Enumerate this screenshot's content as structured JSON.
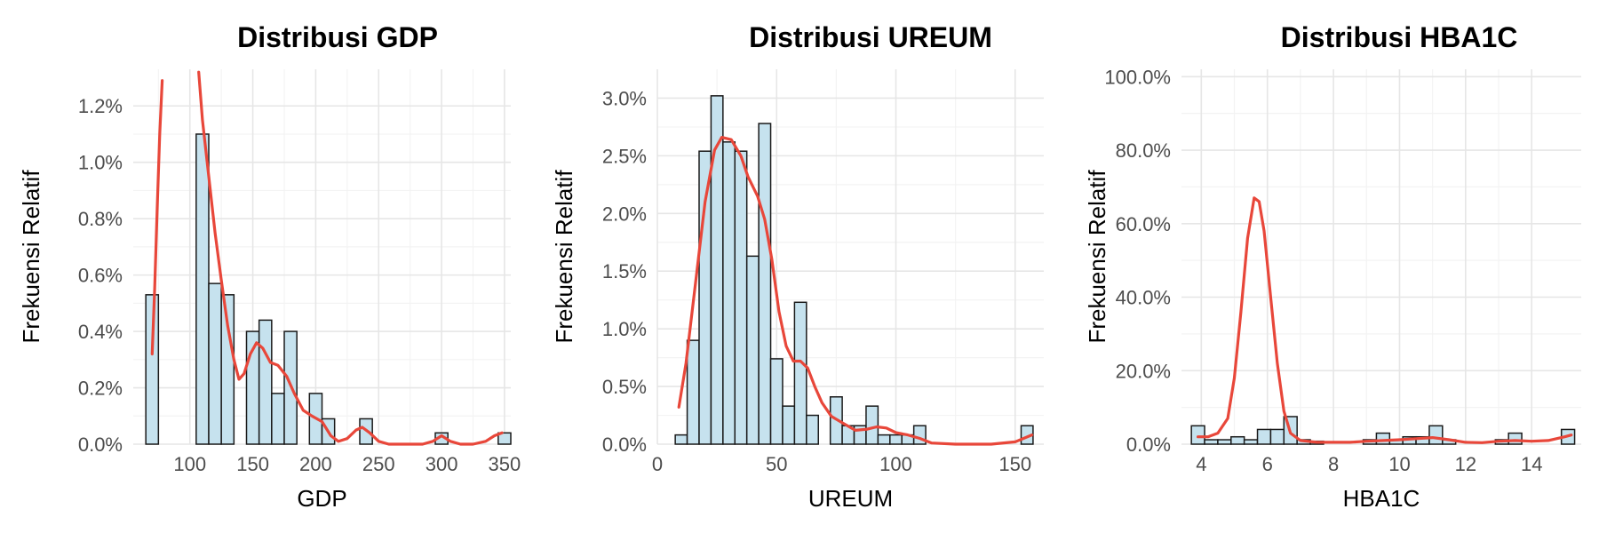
{
  "chart_data": [
    {
      "type": "bar",
      "title": "Distribusi GDP",
      "xlabel": "GDP",
      "ylabel": "Frekuensi Relatif",
      "xlim": [
        55,
        355
      ],
      "ylim": [
        0,
        0.0133
      ],
      "x_ticks": [
        100,
        150,
        200,
        250,
        300,
        350
      ],
      "x_tick_labels": [
        "100",
        "150",
        "200",
        "250",
        "300",
        "350"
      ],
      "y_ticks": [
        0,
        0.002,
        0.004,
        0.006,
        0.008,
        0.01,
        0.012
      ],
      "y_tick_labels": [
        "0.0%",
        "0.2%",
        "0.4%",
        "0.6%",
        "0.8%",
        "1.0%",
        "1.2%"
      ],
      "bin_width": 10,
      "bins": [
        {
          "x": 70,
          "y": 0.0053
        },
        {
          "x": 110,
          "y": 0.011
        },
        {
          "x": 120,
          "y": 0.0057
        },
        {
          "x": 130,
          "y": 0.0053
        },
        {
          "x": 150,
          "y": 0.004
        },
        {
          "x": 160,
          "y": 0.0044
        },
        {
          "x": 170,
          "y": 0.0018
        },
        {
          "x": 180,
          "y": 0.004
        },
        {
          "x": 200,
          "y": 0.0018
        },
        {
          "x": 210,
          "y": 0.0009
        },
        {
          "x": 240,
          "y": 0.0009
        },
        {
          "x": 300,
          "y": 0.0004
        },
        {
          "x": 350,
          "y": 0.0004
        }
      ],
      "density_segments": [
        [
          [
            70,
            0.0032
          ],
          [
            72,
            0.0055
          ],
          [
            74,
            0.0083
          ],
          [
            76,
            0.011
          ],
          [
            78,
            0.0129
          ]
        ],
        [
          [
            107,
            0.0132
          ],
          [
            110,
            0.0115
          ],
          [
            115,
            0.0095
          ],
          [
            120,
            0.0075
          ],
          [
            125,
            0.0058
          ],
          [
            130,
            0.0042
          ],
          [
            135,
            0.003
          ],
          [
            139,
            0.0023
          ],
          [
            143,
            0.0025
          ],
          [
            148,
            0.0032
          ],
          [
            153,
            0.0036
          ],
          [
            158,
            0.0034
          ],
          [
            164,
            0.0029
          ],
          [
            170,
            0.0028
          ],
          [
            177,
            0.0024
          ],
          [
            183,
            0.0018
          ],
          [
            190,
            0.0012
          ],
          [
            197,
            0.001
          ],
          [
            205,
            0.0008
          ],
          [
            212,
            0.0003
          ],
          [
            218,
            0.0001
          ],
          [
            225,
            0.0002
          ],
          [
            232,
            0.0005
          ],
          [
            237,
            0.0006
          ],
          [
            243,
            0.0004
          ],
          [
            250,
            0.0001
          ],
          [
            258,
            0
          ],
          [
            270,
            0
          ],
          [
            285,
            0
          ],
          [
            293,
            0.0001
          ],
          [
            300,
            0.0003
          ],
          [
            307,
            0.0001
          ],
          [
            315,
            0
          ],
          [
            325,
            0
          ],
          [
            335,
            0.0001
          ],
          [
            342,
            0.0003
          ],
          [
            348,
            0.0004
          ]
        ]
      ],
      "grid": true,
      "bar_color": "#c6e2ee",
      "line_color": "#e8473a"
    },
    {
      "type": "bar",
      "title": "Distribusi UREUM",
      "xlabel": "UREUM",
      "ylabel": "Frekuensi Relatif",
      "xlim": [
        0,
        162
      ],
      "ylim": [
        0,
        0.0325
      ],
      "x_ticks": [
        0,
        50,
        100,
        150
      ],
      "x_tick_labels": [
        "0",
        "50",
        "100",
        "150"
      ],
      "y_ticks": [
        0,
        0.005,
        0.01,
        0.015,
        0.02,
        0.025,
        0.03
      ],
      "y_tick_labels": [
        "0.0%",
        "0.5%",
        "1.0%",
        "1.5%",
        "2.0%",
        "2.5%",
        "3.0%"
      ],
      "bin_width": 5,
      "bins": [
        {
          "x": 10,
          "y": 0.0008
        },
        {
          "x": 15,
          "y": 0.009
        },
        {
          "x": 20,
          "y": 0.0254
        },
        {
          "x": 25,
          "y": 0.0302
        },
        {
          "x": 30,
          "y": 0.0262
        },
        {
          "x": 35,
          "y": 0.0254
        },
        {
          "x": 40,
          "y": 0.0163
        },
        {
          "x": 45,
          "y": 0.0278
        },
        {
          "x": 50,
          "y": 0.0074
        },
        {
          "x": 55,
          "y": 0.0033
        },
        {
          "x": 60,
          "y": 0.0123
        },
        {
          "x": 65,
          "y": 0.0025
        },
        {
          "x": 75,
          "y": 0.0041
        },
        {
          "x": 80,
          "y": 0.0016
        },
        {
          "x": 85,
          "y": 0.0016
        },
        {
          "x": 90,
          "y": 0.0033
        },
        {
          "x": 95,
          "y": 0.0008
        },
        {
          "x": 100,
          "y": 0.0008
        },
        {
          "x": 105,
          "y": 0.0008
        },
        {
          "x": 110,
          "y": 0.0016
        },
        {
          "x": 155,
          "y": 0.0016
        }
      ],
      "density_segments": [
        [
          [
            9,
            0.0032
          ],
          [
            12,
            0.007
          ],
          [
            16,
            0.014
          ],
          [
            20,
            0.021
          ],
          [
            24,
            0.0255
          ],
          [
            27,
            0.0266
          ],
          [
            31,
            0.0264
          ],
          [
            35,
            0.025
          ],
          [
            38,
            0.0232
          ],
          [
            42,
            0.0215
          ],
          [
            45,
            0.0195
          ],
          [
            48,
            0.016
          ],
          [
            51,
            0.0115
          ],
          [
            54,
            0.0085
          ],
          [
            57,
            0.0072
          ],
          [
            60,
            0.0072
          ],
          [
            63,
            0.0066
          ],
          [
            66,
            0.005
          ],
          [
            69,
            0.0036
          ],
          [
            73,
            0.0024
          ],
          [
            78,
            0.0018
          ],
          [
            83,
            0.0012
          ],
          [
            88,
            0.0013
          ],
          [
            92,
            0.0015
          ],
          [
            96,
            0.0014
          ],
          [
            100,
            0.001
          ],
          [
            105,
            0.0008
          ],
          [
            110,
            0.0005
          ],
          [
            115,
            0.0001
          ],
          [
            125,
            0
          ],
          [
            140,
            0
          ],
          [
            150,
            0.0002
          ],
          [
            157,
            0.0008
          ]
        ]
      ],
      "grid": true,
      "bar_color": "#c6e2ee",
      "line_color": "#e8473a"
    },
    {
      "type": "bar",
      "title": "Distribusi HBA1C",
      "xlabel": "HBA1C",
      "ylabel": "Frekuensi Relatif",
      "xlim": [
        3.4,
        15.5
      ],
      "ylim": [
        0,
        1.02
      ],
      "x_ticks": [
        4,
        6,
        8,
        10,
        12,
        14
      ],
      "x_tick_labels": [
        "4",
        "6",
        "8",
        "10",
        "12",
        "14"
      ],
      "y_ticks": [
        0,
        0.2,
        0.4,
        0.6,
        0.8,
        1.0
      ],
      "y_tick_labels": [
        "0.0%",
        "20.0%",
        "40.0%",
        "60.0%",
        "80.0%",
        "100.0%"
      ],
      "bin_width": 0.4,
      "bins": [
        {
          "x": 3.9,
          "y": 0.05
        },
        {
          "x": 4.3,
          "y": 0.012
        },
        {
          "x": 4.7,
          "y": 0.012
        },
        {
          "x": 5.1,
          "y": 0.02
        },
        {
          "x": 5.5,
          "y": 0.012
        },
        {
          "x": 5.9,
          "y": 0.04
        },
        {
          "x": 6.3,
          "y": 0.04
        },
        {
          "x": 6.7,
          "y": 0.075
        },
        {
          "x": 7.1,
          "y": 0.012
        },
        {
          "x": 7.5,
          "y": 0.008
        },
        {
          "x": 9.1,
          "y": 0.012
        },
        {
          "x": 9.5,
          "y": 0.03
        },
        {
          "x": 9.9,
          "y": 0.012
        },
        {
          "x": 10.3,
          "y": 0.02
        },
        {
          "x": 10.7,
          "y": 0.02
        },
        {
          "x": 11.1,
          "y": 0.05
        },
        {
          "x": 11.5,
          "y": 0.012
        },
        {
          "x": 13.1,
          "y": 0.012
        },
        {
          "x": 13.5,
          "y": 0.03
        },
        {
          "x": 15.1,
          "y": 0.04
        }
      ],
      "density_segments": [
        [
          [
            3.9,
            0.02
          ],
          [
            4.2,
            0.02
          ],
          [
            4.5,
            0.03
          ],
          [
            4.8,
            0.07
          ],
          [
            5.0,
            0.18
          ],
          [
            5.2,
            0.36
          ],
          [
            5.4,
            0.56
          ],
          [
            5.6,
            0.67
          ],
          [
            5.75,
            0.66
          ],
          [
            5.9,
            0.58
          ],
          [
            6.1,
            0.4
          ],
          [
            6.3,
            0.22
          ],
          [
            6.5,
            0.09
          ],
          [
            6.7,
            0.03
          ],
          [
            7.0,
            0.01
          ],
          [
            7.5,
            0.005
          ],
          [
            8.0,
            0.005
          ],
          [
            8.5,
            0.005
          ],
          [
            9.0,
            0.008
          ],
          [
            9.5,
            0.01
          ],
          [
            10.0,
            0.012
          ],
          [
            10.5,
            0.015
          ],
          [
            11.0,
            0.018
          ],
          [
            11.5,
            0.012
          ],
          [
            12.0,
            0.005
          ],
          [
            12.5,
            0.004
          ],
          [
            13.0,
            0.008
          ],
          [
            13.5,
            0.01
          ],
          [
            14.0,
            0.008
          ],
          [
            14.5,
            0.01
          ],
          [
            15.0,
            0.02
          ],
          [
            15.2,
            0.025
          ]
        ]
      ],
      "grid": true,
      "bar_color": "#c6e2ee",
      "line_color": "#e8473a"
    }
  ]
}
